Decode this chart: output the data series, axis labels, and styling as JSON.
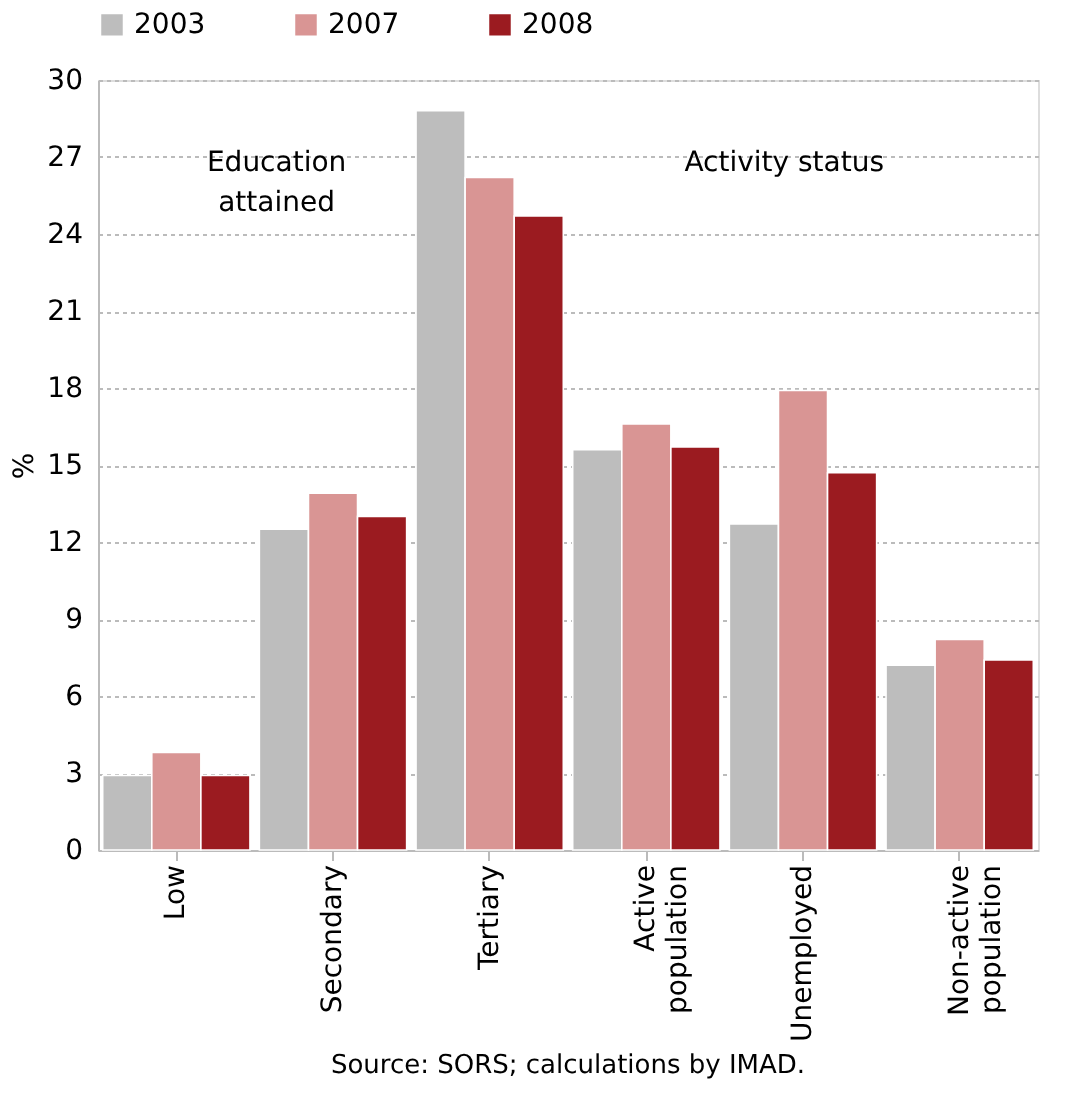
{
  "chart_data": {
    "type": "bar",
    "ylabel": "%",
    "categories": [
      "Low",
      "Secondary",
      "Tertiary",
      "Active population",
      "Unemployed",
      "Non-active population"
    ],
    "series": [
      {
        "name": "2003",
        "color": "#bdbdbd",
        "values": [
          2.9,
          12.5,
          28.8,
          15.6,
          12.7,
          7.2
        ]
      },
      {
        "name": "2007",
        "color": "#d99594",
        "values": [
          3.8,
          13.9,
          26.2,
          16.6,
          17.9,
          8.2
        ]
      },
      {
        "name": "2008",
        "color": "#9b1b20",
        "values": [
          2.9,
          13.0,
          24.7,
          15.7,
          14.7,
          7.4
        ]
      }
    ],
    "ylim": [
      0,
      30
    ],
    "yticks": [
      0,
      3,
      6,
      9,
      12,
      15,
      18,
      21,
      24,
      27,
      30
    ],
    "grid": "y",
    "legend": "top",
    "annotations": [
      "Education attained",
      "Activity status",
      "Source: SORS; calculations by IMAD."
    ]
  }
}
